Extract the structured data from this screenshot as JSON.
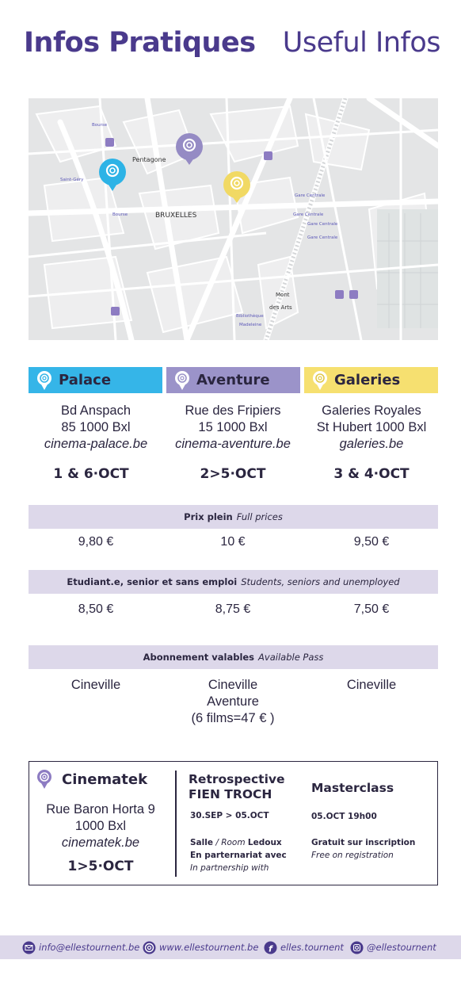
{
  "header": {
    "title_fr": "Infos Pratiques",
    "title_en": "Useful Infos"
  },
  "map": {
    "labels": {
      "pentagone": "Pentagone",
      "bruxelles": "BRUXELLES",
      "gare_centrale_1": "Gare Centrale",
      "gare_centrale_2": "Gare Centrale",
      "gare_centrale_3": "Gare Centrale",
      "gare_centrale_4": "Gare Centrale",
      "mont_des_arts_1": "Mont",
      "mont_des_arts_2": "des Arts",
      "bibliotheque": "Bibliothèque",
      "madeleine": "Madeleine",
      "bourse_1": "Bourse",
      "bourse_2": "Bourse",
      "saint_gery": "Saint-Géry"
    },
    "pins": [
      {
        "name": "palace",
        "color": "#2db3e6"
      },
      {
        "name": "aventure",
        "color": "#958bc4"
      },
      {
        "name": "galeries",
        "color": "#f1d964"
      }
    ]
  },
  "venues": [
    {
      "name": "Palace",
      "color": "#35b5e8",
      "pin_color": "#ffffff",
      "address_1": "Bd Anspach",
      "address_2": "85 1000 Bxl",
      "url": "cinema-palace.be",
      "dates": "1 & 6·OCT"
    },
    {
      "name": "Aventure",
      "color": "#9b93c9",
      "pin_color": "#ffffff",
      "address_1": "Rue des Fripiers",
      "address_2": "15 1000 Bxl",
      "url": "cinema-aventure.be",
      "dates": "2>5·OCT"
    },
    {
      "name": "Galeries",
      "color": "#f6e070",
      "pin_color": "#ffffff",
      "address_1": "Galeries Royales",
      "address_2": "St Hubert 1000 Bxl",
      "url": "galeries.be",
      "dates": "3 & 4·OCT"
    }
  ],
  "prices": {
    "full": {
      "label_fr": "Prix plein",
      "label_en": "Full prices",
      "values": [
        "9,80 €",
        "10 €",
        "9,50 €"
      ]
    },
    "reduced": {
      "label_fr": "Etudiant.e, senior et sans emploi",
      "label_en": "Students, seniors and unemployed",
      "values": [
        "8,50 €",
        "8,75 €",
        "7,50 €"
      ]
    },
    "pass": {
      "label_fr": "Abonnement valables",
      "label_en": "Available Pass",
      "col1": "Cineville",
      "col2_line1": "Cineville",
      "col2_line2": "Aventure",
      "col2_line3": "(6 films=47 € )",
      "col3": "Cineville"
    }
  },
  "cinematek": {
    "name": "Cinematek",
    "address_1": "Rue Baron Horta 9",
    "address_2": "1000 Bxl",
    "url": "cinematek.be",
    "dates": "1>5·OCT",
    "retro_title_1": "Retrospective",
    "retro_title_2": "FIEN TROCH",
    "retro_dates": "30.SEP > 05.OCT",
    "retro_salle": "Salle",
    "retro_room": "/ Room",
    "retro_ledoux": "Ledoux",
    "retro_partner_fr": "En parternariat avec",
    "retro_partner_en": "In partnership with",
    "master_title": "Masterclass",
    "master_date": "05.OCT 19h00",
    "master_free_fr": "Gratuit sur inscription",
    "master_free_en": "Free on registration"
  },
  "footer": {
    "email": "info@ellestournent.be",
    "website": "www.ellestournent.be",
    "facebook": "elles.tournent",
    "instagram": "@ellestournent",
    "icon_names": [
      "mail-icon",
      "spiral-icon",
      "facebook-icon",
      "instagram-icon"
    ]
  },
  "colors": {
    "accent": "#4a3a8c",
    "band": "#ddd8ea",
    "text": "#2b2640"
  }
}
